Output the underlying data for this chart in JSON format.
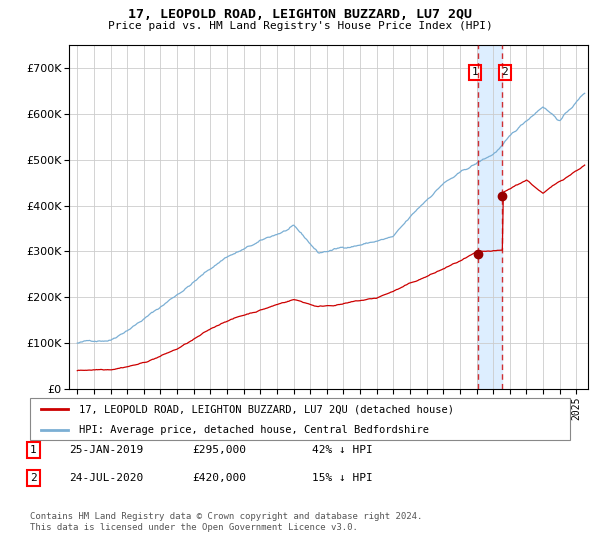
{
  "title": "17, LEOPOLD ROAD, LEIGHTON BUZZARD, LU7 2QU",
  "subtitle": "Price paid vs. HM Land Registry's House Price Index (HPI)",
  "footer": "Contains HM Land Registry data © Crown copyright and database right 2024.\nThis data is licensed under the Open Government Licence v3.0.",
  "legend_line1": "17, LEOPOLD ROAD, LEIGHTON BUZZARD, LU7 2QU (detached house)",
  "legend_line2": "HPI: Average price, detached house, Central Bedfordshire",
  "annotation1_label": "1",
  "annotation1_date": "25-JAN-2019",
  "annotation1_price": "£295,000",
  "annotation1_note": "42% ↓ HPI",
  "annotation2_label": "2",
  "annotation2_date": "24-JUL-2020",
  "annotation2_price": "£420,000",
  "annotation2_note": "15% ↓ HPI",
  "vline1_x": 2019.07,
  "vline2_x": 2020.56,
  "point1_x": 2019.07,
  "point1_y": 295000,
  "point2_x": 2020.56,
  "point2_y": 420000,
  "hpi_color": "#7bafd4",
  "price_color": "#cc0000",
  "grid_color": "#cccccc",
  "bg_color": "#ffffff",
  "highlight_color": "#ddeeff",
  "ylim": [
    0,
    750000
  ],
  "yticks": [
    0,
    100000,
    200000,
    300000,
    400000,
    500000,
    600000,
    700000
  ],
  "ytick_labels": [
    "£0",
    "£100K",
    "£200K",
    "£300K",
    "£400K",
    "£500K",
    "£600K",
    "£700K"
  ],
  "xlim_start": 1994.5,
  "xlim_end": 2025.7
}
